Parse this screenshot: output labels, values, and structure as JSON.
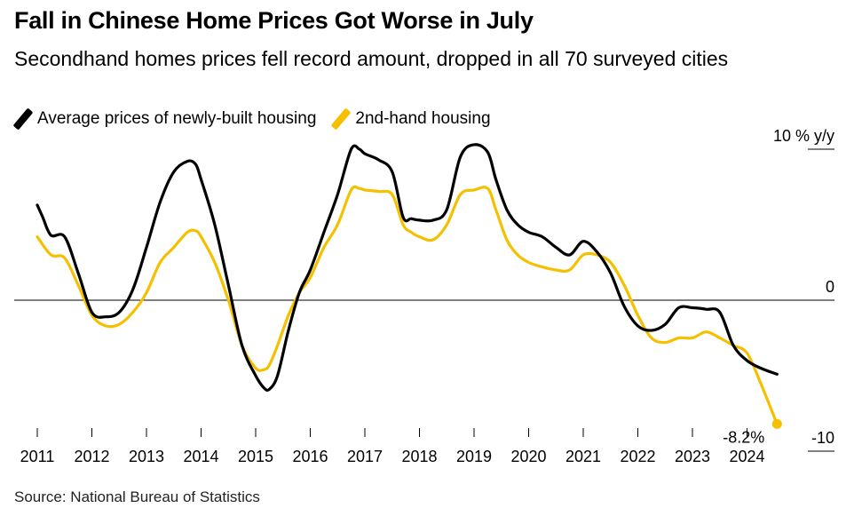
{
  "title": "Fall in Chinese Home Prices Got Worse in July",
  "subtitle": "Secondhand homes prices fell record amount, dropped in all 70 surveyed cities",
  "source": "Source: National Bureau of Statistics",
  "colors": {
    "new_housing": "#000000",
    "second_hand": "#f5c000",
    "zero_line": "#000000"
  },
  "chart_data": {
    "type": "line",
    "title": "Fall in Chinese Home Prices Got Worse in July",
    "ylabel": "% y/y",
    "ylim": [
      -12,
      11
    ],
    "y_ticks": [
      {
        "value": 10,
        "label": "10 % y/y"
      },
      {
        "value": 0,
        "label": "0"
      },
      {
        "value": -10,
        "label": "-10"
      }
    ],
    "x_ticks": [
      "2011",
      "2012",
      "2013",
      "2014",
      "2015",
      "2016",
      "2017",
      "2018",
      "2019",
      "2020",
      "2021",
      "2022",
      "2023",
      "2024"
    ],
    "annotation": {
      "text": "-8.2%",
      "series": "2nd-hand housing",
      "x": 2024.55,
      "y": -8.2
    },
    "series": [
      {
        "name": "Average prices of newly-built housing",
        "x": [
          2011.0,
          2011.1,
          2011.25,
          2011.5,
          2011.75,
          2012.0,
          2012.25,
          2012.5,
          2012.75,
          2013.0,
          2013.25,
          2013.5,
          2013.75,
          2013.9,
          2014.0,
          2014.25,
          2014.5,
          2014.75,
          2015.0,
          2015.15,
          2015.25,
          2015.4,
          2015.6,
          2015.8,
          2016.0,
          2016.25,
          2016.5,
          2016.75,
          2016.9,
          2017.0,
          2017.25,
          2017.5,
          2017.7,
          2017.85,
          2018.0,
          2018.25,
          2018.5,
          2018.75,
          2019.0,
          2019.25,
          2019.4,
          2019.6,
          2019.8,
          2020.0,
          2020.25,
          2020.5,
          2020.75,
          2021.0,
          2021.25,
          2021.5,
          2021.75,
          2022.0,
          2022.25,
          2022.5,
          2022.75,
          2023.0,
          2023.25,
          2023.5,
          2023.75,
          2024.0,
          2024.25,
          2024.55
        ],
        "values": [
          6.3,
          5.5,
          4.3,
          4.2,
          1.8,
          -0.8,
          -1.1,
          -0.8,
          0.7,
          3.5,
          6.5,
          8.5,
          9.2,
          9.0,
          8.0,
          5.0,
          1.0,
          -3.0,
          -5.0,
          -5.8,
          -5.9,
          -5.0,
          -2.0,
          0.5,
          2.0,
          4.5,
          7.0,
          10.0,
          10.0,
          9.7,
          9.3,
          8.5,
          5.5,
          5.4,
          5.3,
          5.3,
          6.0,
          9.5,
          10.3,
          9.8,
          8.0,
          6.0,
          5.0,
          4.5,
          4.2,
          3.5,
          3.0,
          3.9,
          3.2,
          1.8,
          -0.4,
          -1.7,
          -2.0,
          -1.6,
          -0.5,
          -0.5,
          -0.6,
          -0.8,
          -3.0,
          -4.0,
          -4.5,
          -4.9
        ]
      },
      {
        "name": "2nd-hand housing",
        "x": [
          2011.0,
          2011.25,
          2011.5,
          2011.75,
          2012.0,
          2012.25,
          2012.5,
          2012.75,
          2013.0,
          2013.25,
          2013.5,
          2013.75,
          2013.9,
          2014.0,
          2014.25,
          2014.5,
          2014.75,
          2015.0,
          2015.15,
          2015.25,
          2015.4,
          2015.6,
          2015.8,
          2016.0,
          2016.25,
          2016.5,
          2016.75,
          2016.9,
          2017.0,
          2017.25,
          2017.5,
          2017.7,
          2017.85,
          2018.0,
          2018.25,
          2018.5,
          2018.75,
          2019.0,
          2019.25,
          2019.4,
          2019.6,
          2019.8,
          2020.0,
          2020.25,
          2020.5,
          2020.75,
          2021.0,
          2021.25,
          2021.5,
          2021.75,
          2022.0,
          2022.25,
          2022.5,
          2022.75,
          2023.0,
          2023.25,
          2023.5,
          2023.75,
          2024.0,
          2024.25,
          2024.55
        ],
        "values": [
          4.2,
          3.0,
          2.8,
          1.0,
          -1.0,
          -1.7,
          -1.6,
          -0.8,
          0.5,
          2.5,
          3.5,
          4.5,
          4.6,
          4.2,
          2.5,
          0.0,
          -3.0,
          -4.5,
          -4.6,
          -4.3,
          -3.0,
          -1.0,
          0.5,
          1.5,
          3.5,
          5.0,
          7.3,
          7.4,
          7.3,
          7.2,
          7.0,
          5.0,
          4.5,
          4.2,
          4.0,
          5.0,
          7.0,
          7.3,
          7.4,
          6.0,
          4.0,
          3.0,
          2.5,
          2.2,
          2.0,
          2.0,
          3.0,
          3.0,
          2.5,
          1.0,
          -1.0,
          -2.5,
          -2.8,
          -2.5,
          -2.5,
          -2.1,
          -2.5,
          -3.0,
          -3.5,
          -5.5,
          -8.2
        ]
      }
    ]
  }
}
